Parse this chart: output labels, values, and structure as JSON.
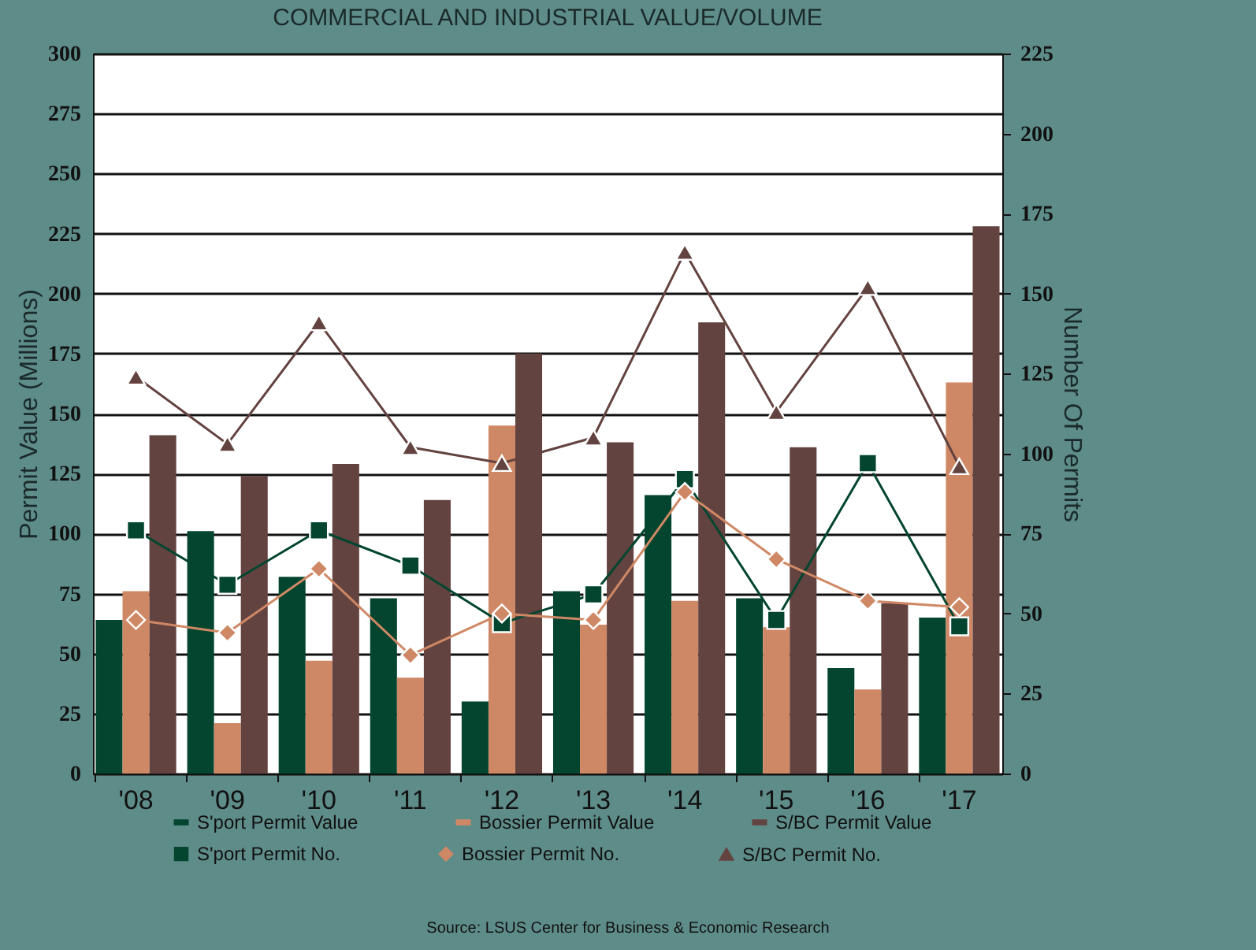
{
  "chart_data": {
    "type": "bar",
    "title": "COMMERCIAL AND INDUSTRIAL VALUE/VOLUME",
    "ylabel": "Permit Value (Millions)",
    "y2label": "Number Of Permits",
    "categories": [
      "'08",
      "'09",
      "'10",
      "'11",
      "'12",
      "'13",
      "'14",
      "'15",
      "'16",
      "'17"
    ],
    "series": [
      {
        "name": "S'port Permit Value",
        "color": "#03452f",
        "values": [
          64,
          101,
          82,
          73,
          30,
          76,
          116,
          73,
          44,
          65
        ]
      },
      {
        "name": "Bossier Permit Value",
        "color": "#cf8865",
        "values": [
          76,
          21,
          47,
          40,
          145,
          62,
          72,
          61,
          35,
          163
        ]
      },
      {
        "name": "S/BC Permit Value",
        "color": "#634340",
        "values": [
          141,
          124,
          129,
          114,
          175,
          138,
          188,
          136,
          71,
          228
        ]
      },
      {
        "name": "S'port Permit No.",
        "color": "#03452f",
        "type": "line",
        "axis": "y2",
        "marker": "square",
        "values": [
          76,
          59,
          76,
          65,
          47,
          56,
          92,
          48,
          97,
          46
        ]
      },
      {
        "name": "Bossier Permit No.",
        "color": "#cf8865",
        "type": "line",
        "axis": "y2",
        "marker": "diamond",
        "values": [
          48,
          44,
          64,
          37,
          50,
          48,
          88,
          67,
          54,
          52
        ]
      },
      {
        "name": "S/BC Permit No.",
        "color": "#634340",
        "type": "line",
        "axis": "y2",
        "marker": "triangle",
        "values": [
          124,
          103,
          141,
          102,
          97,
          105,
          163,
          113,
          152,
          96
        ]
      }
    ],
    "ylim": [
      0,
      300
    ],
    "yticks": [
      0,
      25,
      50,
      75,
      100,
      125,
      150,
      175,
      200,
      225,
      250,
      275,
      300
    ],
    "y2lim": [
      0,
      225
    ],
    "y2ticks": [
      0,
      25,
      50,
      75,
      100,
      125,
      150,
      175,
      200,
      225
    ],
    "grid": "y",
    "legend": "bottom",
    "annotations": [
      "Source: LSUS Center for Business & Economic Research"
    ]
  }
}
